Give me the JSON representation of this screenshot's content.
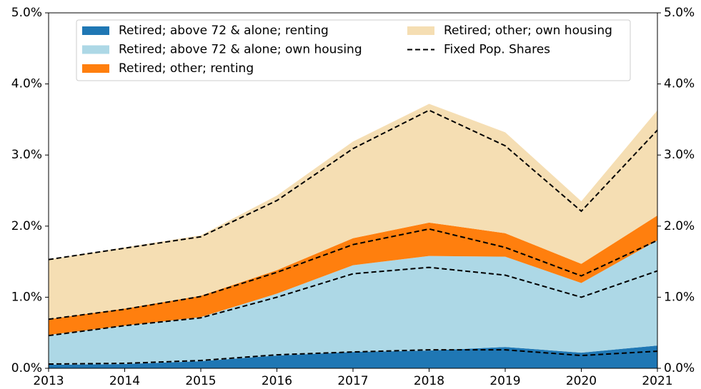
{
  "chart_data": {
    "type": "stacked_area",
    "x": [
      2013,
      2014,
      2015,
      2016,
      2017,
      2018,
      2019,
      2020,
      2021
    ],
    "xlim": [
      2013,
      2021
    ],
    "xticks": [
      2013,
      2014,
      2015,
      2016,
      2017,
      2018,
      2019,
      2020,
      2021
    ],
    "ylim": [
      0,
      5
    ],
    "yticks": [
      {
        "value": 0,
        "label": "0.0%"
      },
      {
        "value": 1,
        "label": "1.0%"
      },
      {
        "value": 2,
        "label": "2.0%"
      },
      {
        "value": 3,
        "label": "3.0%"
      },
      {
        "value": 4,
        "label": "4.0%"
      },
      {
        "value": 5,
        "label": "5.0%"
      }
    ],
    "y2lim": [
      0,
      5
    ],
    "y2ticks": [
      {
        "value": 0,
        "label": "0.0%"
      },
      {
        "value": 1,
        "label": "1.0%"
      },
      {
        "value": 2,
        "label": "2.0%"
      },
      {
        "value": 3,
        "label": "3.0%"
      },
      {
        "value": 4,
        "label": "4.0%"
      },
      {
        "value": 5,
        "label": "5.0%"
      }
    ],
    "series": [
      {
        "name": "Retired; above 72 & alone; renting",
        "color": "#1f77b4",
        "values": [
          0.05,
          0.06,
          0.1,
          0.18,
          0.23,
          0.25,
          0.3,
          0.22,
          0.32
        ]
      },
      {
        "name": "Retired; above 72 & alone; own housing",
        "color": "#add8e6",
        "values": [
          0.42,
          0.54,
          0.62,
          0.87,
          1.22,
          1.33,
          1.27,
          0.98,
          1.48
        ]
      },
      {
        "name": "Retired; other; renting",
        "color": "#ff7f0e",
        "values": [
          0.22,
          0.24,
          0.3,
          0.33,
          0.38,
          0.47,
          0.33,
          0.27,
          0.35
        ]
      },
      {
        "name": "Retired; other; own housing",
        "color": "#f5deb3",
        "values": [
          0.84,
          0.86,
          0.85,
          1.05,
          1.36,
          1.67,
          1.42,
          0.88,
          1.48
        ]
      }
    ],
    "fixed_pop_shares": {
      "name": "Fixed Pop. Shares",
      "color": "#000000",
      "lines": [
        [
          0.06,
          0.07,
          0.11,
          0.19,
          0.23,
          0.26,
          0.26,
          0.18,
          0.24
        ],
        [
          0.46,
          0.6,
          0.71,
          1.0,
          1.33,
          1.42,
          1.31,
          1.0,
          1.37
        ],
        [
          0.69,
          0.83,
          1.01,
          1.35,
          1.74,
          1.96,
          1.7,
          1.3,
          1.8
        ],
        [
          1.53,
          1.69,
          1.85,
          2.36,
          3.09,
          3.63,
          3.13,
          2.21,
          3.35
        ]
      ]
    },
    "legend": "upper center"
  }
}
